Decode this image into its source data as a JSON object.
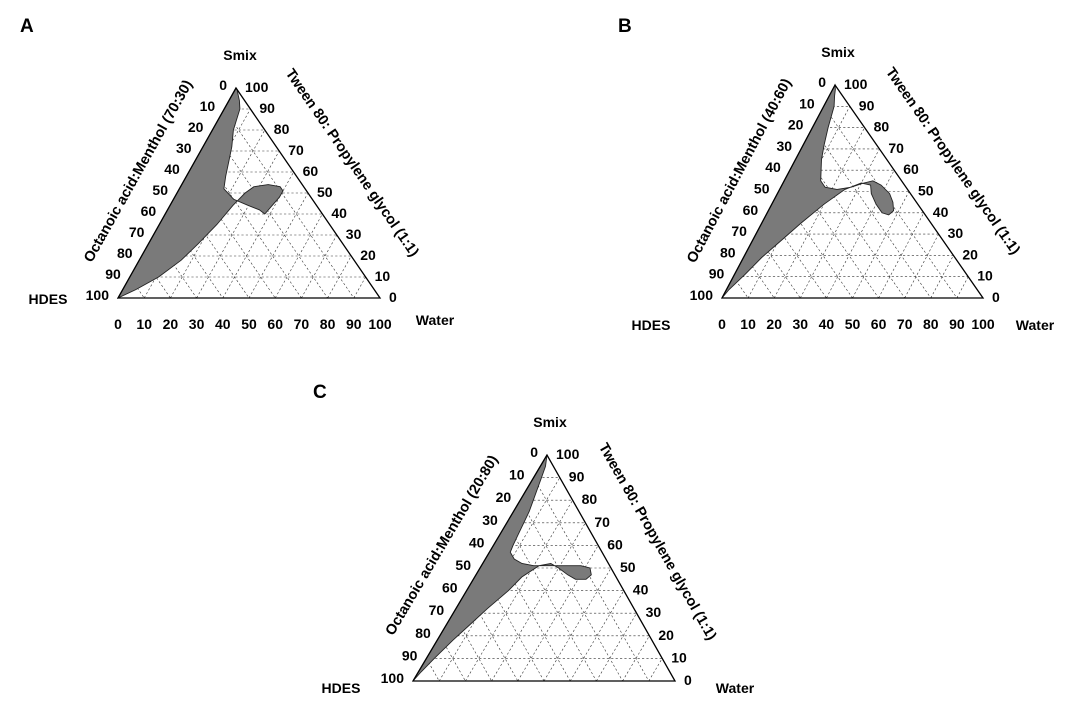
{
  "chart_data": [
    {
      "type": "ternary",
      "panel_label": "A",
      "vertices": {
        "top": "Smix",
        "left": "HDES",
        "right": "Water"
      },
      "axis_titles": {
        "left_edge": "Octanoic acid:Menthol (70:30)",
        "right_edge": "Tween 80: Propylene glycol (1:1)"
      },
      "ticks": {
        "left_edge": [
          "0",
          "10",
          "20",
          "30",
          "40",
          "50",
          "60",
          "70",
          "80",
          "90",
          "100"
        ],
        "right_edge": [
          "100",
          "90",
          "80",
          "70",
          "60",
          "50",
          "40",
          "30",
          "20",
          "10",
          "0"
        ],
        "bottom_edge": [
          "0",
          "10",
          "20",
          "30",
          "40",
          "50",
          "60",
          "70",
          "80",
          "90",
          "100"
        ]
      },
      "grid_step": 10,
      "region_boundary_smix_water": [
        [
          100,
          0
        ],
        [
          99,
          1
        ],
        [
          98,
          1.5
        ],
        [
          94,
          4
        ],
        [
          90,
          6
        ],
        [
          80,
          8
        ],
        [
          72,
          11
        ],
        [
          65,
          13
        ],
        [
          58,
          15
        ],
        [
          52,
          17
        ],
        [
          47,
          23
        ],
        [
          44,
          30
        ],
        [
          42,
          35
        ],
        [
          40,
          38
        ],
        [
          44,
          39
        ],
        [
          48,
          40
        ],
        [
          51,
          40
        ],
        [
          53,
          38
        ],
        [
          54,
          33
        ],
        [
          53,
          28
        ],
        [
          50,
          26
        ],
        [
          44,
          24
        ],
        [
          35,
          22
        ],
        [
          26,
          19
        ],
        [
          18,
          16
        ],
        [
          10,
          11
        ],
        [
          4,
          5
        ],
        [
          0,
          0
        ]
      ]
    },
    {
      "type": "ternary",
      "panel_label": "B",
      "vertices": {
        "top": "Smix",
        "left": "HDES",
        "right": "Water"
      },
      "axis_titles": {
        "left_edge": "Octanoic acid:Menthol (40:60)",
        "right_edge": "Tween 80: Propylene glycol (1:1)"
      },
      "ticks": {
        "left_edge": [
          "0",
          "10",
          "20",
          "30",
          "40",
          "50",
          "60",
          "70",
          "80",
          "90",
          "100"
        ],
        "right_edge": [
          "100",
          "90",
          "80",
          "70",
          "60",
          "50",
          "40",
          "30",
          "20",
          "10",
          "0"
        ],
        "bottom_edge": [
          "0",
          "10",
          "20",
          "30",
          "40",
          "50",
          "60",
          "70",
          "80",
          "90",
          "100"
        ]
      },
      "grid_step": 10,
      "region_boundary_smix_water": [
        [
          100,
          0
        ],
        [
          98,
          1
        ],
        [
          95,
          2
        ],
        [
          90,
          4
        ],
        [
          85,
          5
        ],
        [
          80,
          6
        ],
        [
          72,
          8
        ],
        [
          65,
          10
        ],
        [
          60,
          12
        ],
        [
          55,
          14
        ],
        [
          52,
          17
        ],
        [
          51,
          22
        ],
        [
          52,
          27
        ],
        [
          54,
          31
        ],
        [
          55,
          34
        ],
        [
          53,
          38
        ],
        [
          49,
          43
        ],
        [
          45,
          46
        ],
        [
          41,
          48
        ],
        [
          39,
          47
        ],
        [
          40,
          44
        ],
        [
          44,
          40
        ],
        [
          49,
          36
        ],
        [
          53,
          34
        ],
        [
          54,
          30
        ],
        [
          51,
          25
        ],
        [
          44,
          20
        ],
        [
          35,
          15
        ],
        [
          27,
          11
        ],
        [
          19,
          7
        ],
        [
          11,
          4
        ],
        [
          4,
          1
        ],
        [
          0,
          0
        ]
      ]
    },
    {
      "type": "ternary",
      "panel_label": "C",
      "vertices": {
        "top": "Smix",
        "left": "HDES",
        "right": "Water"
      },
      "axis_titles": {
        "left_edge": "Octanoic acid:Menthol (20:80)",
        "right_edge": "Tween 80: Propylene glycol (1:1)"
      },
      "ticks": {
        "left_edge": [
          "0",
          "10",
          "20",
          "30",
          "40",
          "50",
          "60",
          "70",
          "80",
          "90",
          "100"
        ],
        "right_edge": [
          "100",
          "90",
          "80",
          "70",
          "60",
          "50",
          "40",
          "30",
          "20",
          "10",
          "0"
        ],
        "bottom_edge": [
          "0",
          "10",
          "20",
          "30",
          "40",
          "50",
          "60",
          "70",
          "80",
          "90",
          "100"
        ]
      },
      "grid_step": 10,
      "region_boundary_smix_water": [
        [
          100,
          0
        ],
        [
          95,
          2
        ],
        [
          90,
          3
        ],
        [
          85,
          4
        ],
        [
          80,
          5
        ],
        [
          75,
          6
        ],
        [
          70,
          6.5
        ],
        [
          65,
          7
        ],
        [
          60,
          7.5
        ],
        [
          57,
          8
        ],
        [
          54,
          11
        ],
        [
          52,
          15
        ],
        [
          51,
          20
        ],
        [
          51,
          25
        ],
        [
          51,
          32
        ],
        [
          51,
          38
        ],
        [
          50,
          42
        ],
        [
          47,
          44
        ],
        [
          45,
          43
        ],
        [
          45,
          39
        ],
        [
          47,
          35
        ],
        [
          50,
          30
        ],
        [
          52,
          26
        ],
        [
          51,
          22
        ],
        [
          46,
          18
        ],
        [
          40,
          16
        ],
        [
          32,
          12
        ],
        [
          25,
          9
        ],
        [
          18,
          6
        ],
        [
          10,
          3
        ],
        [
          4,
          1
        ],
        [
          0,
          0
        ]
      ]
    }
  ]
}
